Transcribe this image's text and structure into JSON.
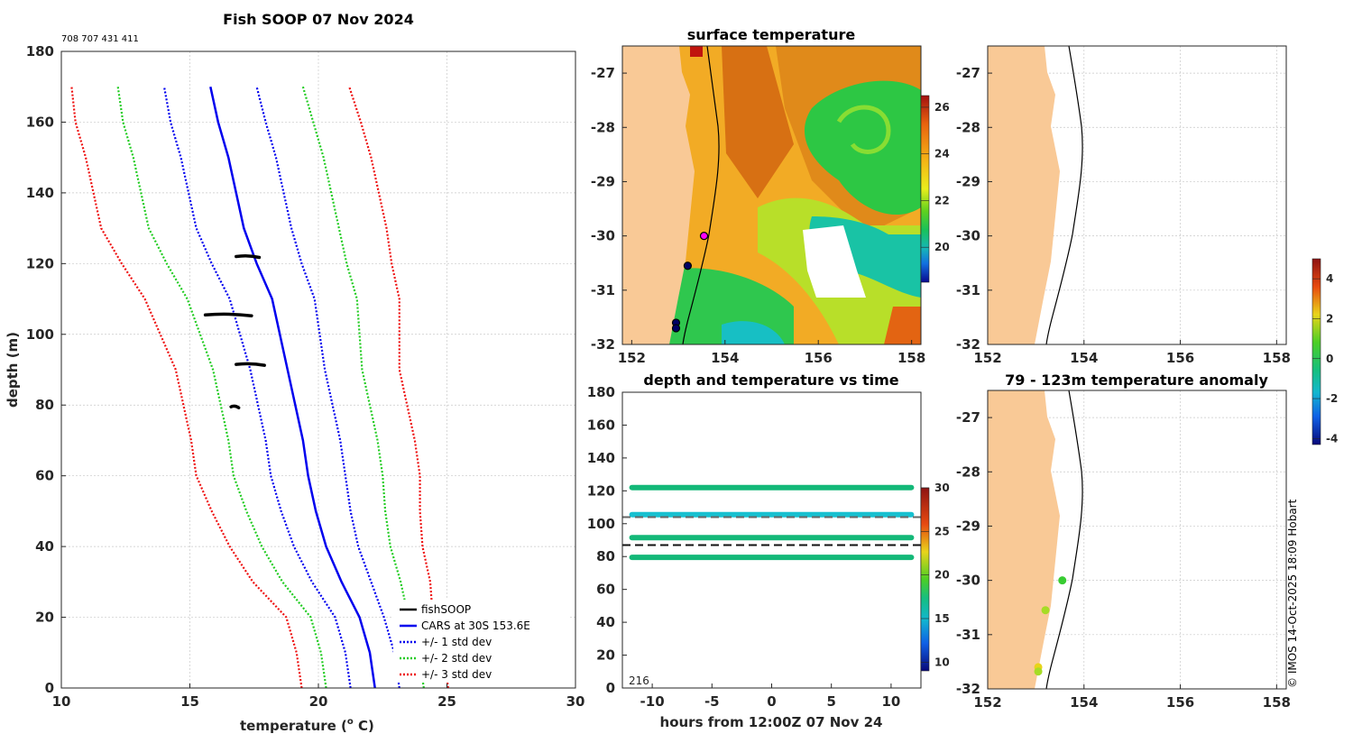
{
  "chart_data": [
    {
      "id": "profile",
      "type": "line",
      "title": "Fish SOOP 07 Nov 2024",
      "ids_text": "708 707 431 411",
      "xlabel": "temperature (",
      "xlabel_sup": "o",
      "xlabel_tail": " C)",
      "ylabel": "depth (m)",
      "xlim": [
        10,
        30
      ],
      "ylim": [
        180,
        0
      ],
      "xticks": [
        "10",
        "15",
        "20",
        "25",
        "30"
      ],
      "yticks": [
        "0",
        "20",
        "40",
        "60",
        "80",
        "100",
        "120",
        "140",
        "160",
        "180"
      ],
      "cars_depth": [
        0,
        10,
        20,
        30,
        40,
        50,
        60,
        70,
        80,
        90,
        100,
        110,
        120,
        130,
        140,
        150,
        160,
        170
      ],
      "cars_temp": [
        22.2,
        22.0,
        21.6,
        20.9,
        20.3,
        19.9,
        19.6,
        19.4,
        19.1,
        18.8,
        18.5,
        18.2,
        17.6,
        17.1,
        16.8,
        16.5,
        16.1,
        15.8
      ],
      "std_dev": [
        0.95,
        0.95,
        0.95,
        1.15,
        1.25,
        1.35,
        1.45,
        1.45,
        1.45,
        1.45,
        1.55,
        1.65,
        1.75,
        1.85,
        1.85,
        1.85,
        1.85,
        1.8
      ],
      "series": [
        {
          "name": "fishSOOP",
          "color": "#000000",
          "style": "solid"
        },
        {
          "name": "CARS at 30S 153.6E",
          "color": "#0000ee",
          "style": "solid"
        },
        {
          "name": "+/- 1 std dev",
          "color": "#0000ee",
          "style": "dotted"
        },
        {
          "name": "+/- 2 std dev",
          "color": "#22cc22",
          "style": "dotted"
        },
        {
          "name": "+/- 3 std dev",
          "color": "#ee1111",
          "style": "dotted"
        }
      ],
      "fishsoop": [
        {
          "depth": 79.5,
          "t_start": 16.6,
          "t_end": 16.9
        },
        {
          "depth": 91.5,
          "t_start": 16.8,
          "t_end": 17.9
        },
        {
          "depth": 105.5,
          "t_start": 15.6,
          "t_end": 17.4
        },
        {
          "depth": 122.0,
          "t_start": 16.8,
          "t_end": 17.7
        }
      ],
      "legend_position": "bottom-right"
    },
    {
      "id": "sst",
      "type": "heatmap",
      "title": "surface temperature",
      "xlim": [
        151.8,
        158.2
      ],
      "ylim": [
        -32,
        -26.5
      ],
      "xticks": [
        "152",
        "154",
        "156",
        "158"
      ],
      "yticks": [
        "-27",
        "-28",
        "-29",
        "-30",
        "-31",
        "-32"
      ],
      "colorbar_ticks": [
        "20",
        "22",
        "24",
        "26"
      ],
      "colorbar_range": [
        18.5,
        26.5
      ],
      "markers": [
        {
          "lon": 153.55,
          "lat": -30.0,
          "color": "#ff00ff"
        },
        {
          "lon": 153.2,
          "lat": -30.55,
          "color": "#000066"
        },
        {
          "lon": 152.95,
          "lat": -31.6,
          "color": "#000066"
        },
        {
          "lon": 152.95,
          "lat": -31.7,
          "color": "#000066"
        }
      ]
    },
    {
      "id": "time",
      "type": "scatter",
      "title": "depth and temperature vs time",
      "xlabel": "hours from 12:00Z 07 Nov 24",
      "xlim": [
        -12.5,
        12.5
      ],
      "ylim": [
        180,
        0
      ],
      "xticks": [
        "-10",
        "-5",
        "0",
        "5",
        "10"
      ],
      "yticks": [
        "0",
        "20",
        "40",
        "60",
        "80",
        "100",
        "120",
        "140",
        "160",
        "180"
      ],
      "count_label": "216",
      "dashed_depths": [
        87,
        104
      ],
      "tracks": [
        {
          "depth": 79.5,
          "temp": 20.8
        },
        {
          "depth": 91.5,
          "temp": 20.5
        },
        {
          "depth": 105.5,
          "temp": 18.0
        },
        {
          "depth": 122.0,
          "temp": 20.6
        }
      ],
      "x_range": [
        -11.7,
        11.7
      ],
      "colorbar_ticks": [
        "10",
        "15",
        "20",
        "25",
        "30"
      ],
      "colorbar_range": [
        9,
        30
      ]
    },
    {
      "id": "map_top",
      "type": "scatter",
      "title": "",
      "xlim": [
        152,
        158.2
      ],
      "ylim": [
        -32,
        -26.5
      ],
      "xticks": [
        "152",
        "154",
        "156",
        "158"
      ],
      "yticks": [
        "-27",
        "-28",
        "-29",
        "-30",
        "-31",
        "-32"
      ]
    },
    {
      "id": "anomaly",
      "type": "scatter",
      "title": "79 - 123m temperature anomaly",
      "xlim": [
        152,
        158.2
      ],
      "ylim": [
        -32,
        -26.5
      ],
      "xticks": [
        "152",
        "154",
        "156",
        "158"
      ],
      "yticks": [
        "-27",
        "-28",
        "-29",
        "-30",
        "-31",
        "-32"
      ],
      "points": [
        {
          "lon": 153.55,
          "lat": -30.0,
          "value": 0.4
        },
        {
          "lon": 153.2,
          "lat": -30.55,
          "value": 1.3
        },
        {
          "lon": 153.05,
          "lat": -31.6,
          "value": 2.1
        },
        {
          "lon": 153.05,
          "lat": -31.68,
          "value": 1.7
        }
      ],
      "colorbar_ticks": [
        "4",
        "2",
        "0",
        "-2",
        "-4"
      ],
      "colorbar_range": [
        -4.3,
        5
      ]
    }
  ],
  "credit": "© IMOS 14-Oct-2025 18:09 Hobart",
  "colors": {
    "land": "#f9c996",
    "axis": "#262626",
    "grid": "#c8c8c8"
  }
}
